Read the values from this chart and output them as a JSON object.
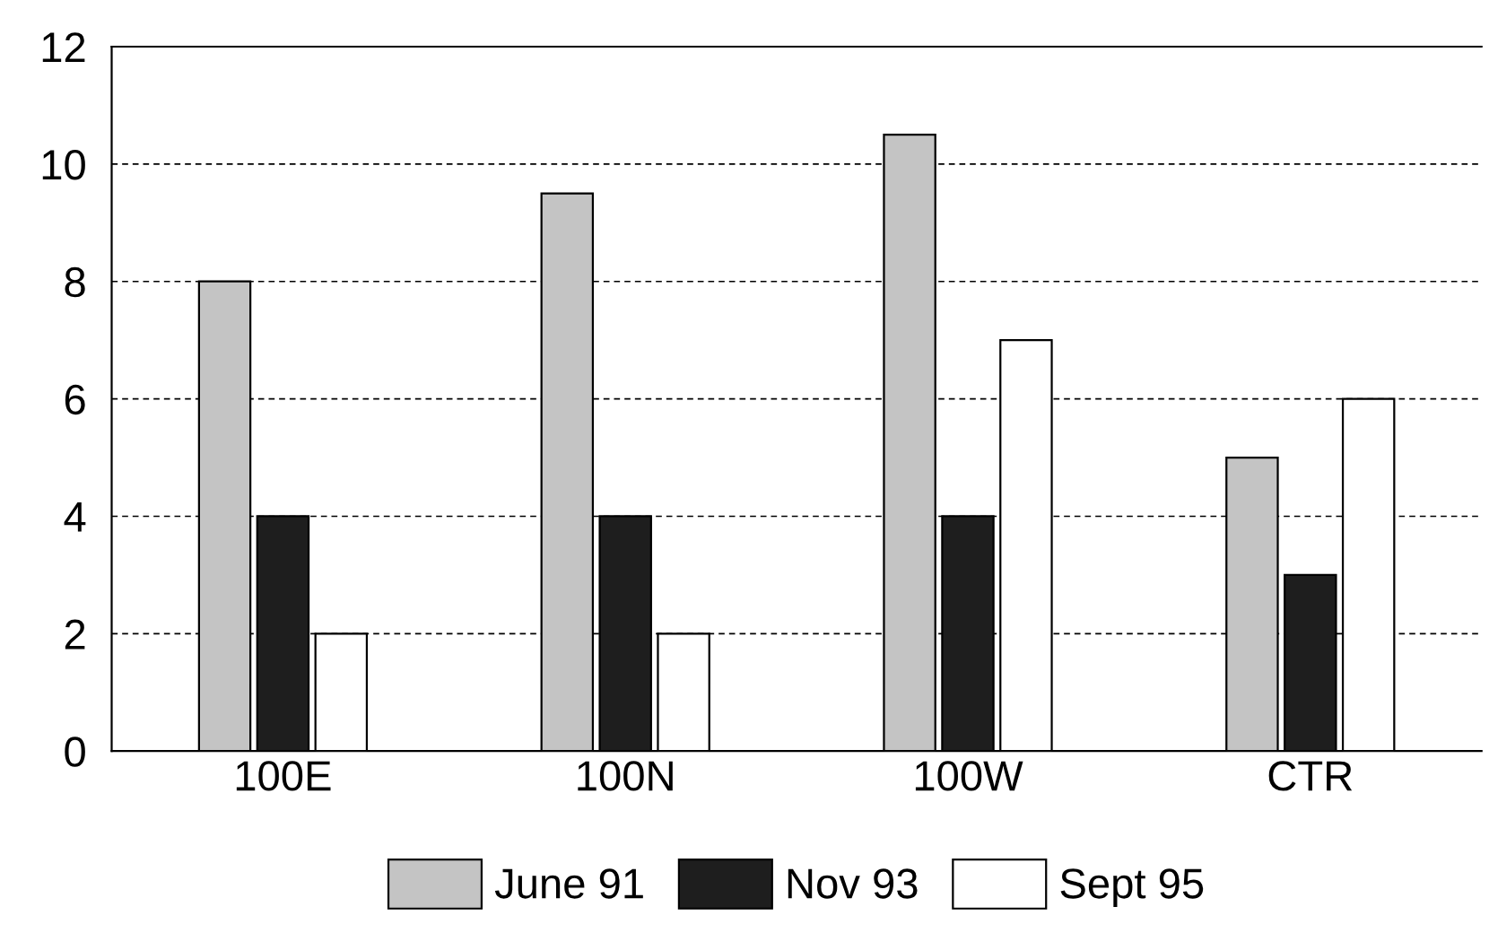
{
  "chart_data": {
    "type": "bar",
    "categories": [
      "100E",
      "100N",
      "100W",
      "CTR"
    ],
    "series": [
      {
        "name": "June 91",
        "color": "#c4c4c4",
        "values": [
          8,
          9.5,
          10.5,
          5
        ]
      },
      {
        "name": "Nov 93",
        "color": "#1e1e1e",
        "values": [
          4,
          4,
          4,
          3
        ]
      },
      {
        "name": "Sept 95",
        "color": "#ffffff",
        "values": [
          2,
          2,
          7,
          6
        ]
      }
    ],
    "ylim": [
      0,
      12
    ],
    "yticks": [
      0,
      2,
      4,
      6,
      8,
      10,
      12
    ],
    "grid": "y",
    "legend": "bottom"
  }
}
